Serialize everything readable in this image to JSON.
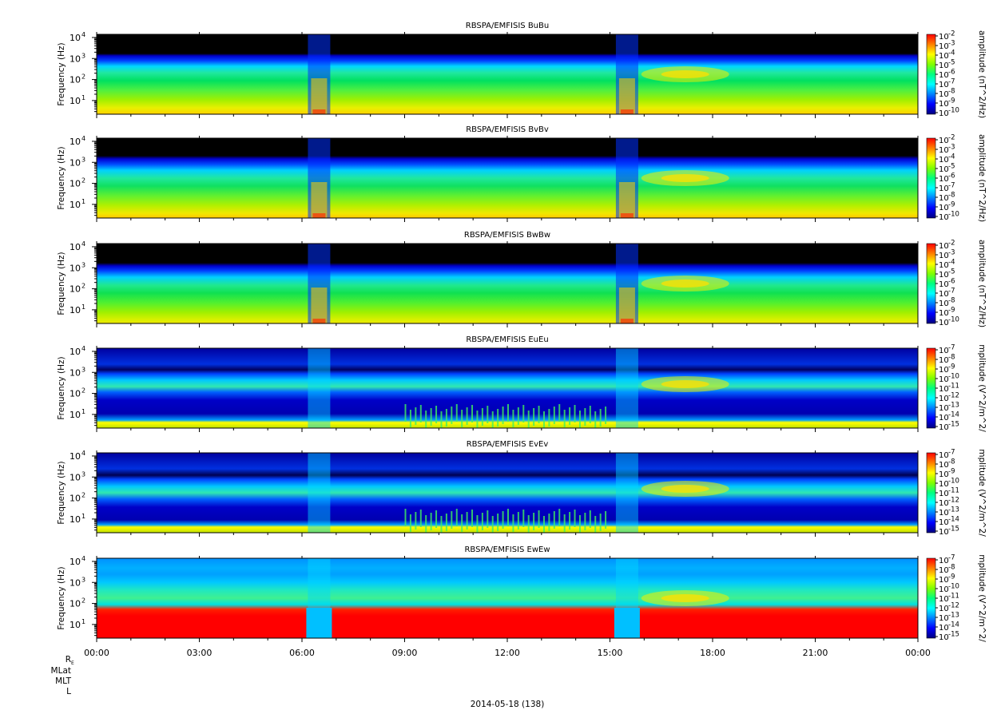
{
  "chart_data": [
    {
      "type": "heatmap",
      "title": "RBSPA/EMFISIS  BuBu",
      "ylabel": "Frequency (Hz)",
      "y_scale": "log",
      "y_ticks": [
        "10",
        "10",
        "10",
        "10"
      ],
      "y_tick_exponents": [
        "1",
        "2",
        "3",
        "4"
      ],
      "colorbar_label": "amplitude (nT^2/Hz)",
      "colorbar_ticks": [
        "10",
        "10",
        "10",
        "10",
        "10",
        "10",
        "10",
        "10",
        "10"
      ],
      "colorbar_exponents": [
        "-2",
        "-3",
        "-4",
        "-5",
        "-6",
        "-7",
        "-8",
        "-9",
        "-10"
      ]
    },
    {
      "type": "heatmap",
      "title": "RBSPA/EMFISIS  BvBv",
      "ylabel": "Frequency (Hz)",
      "y_scale": "log",
      "y_ticks": [
        "10",
        "10",
        "10",
        "10"
      ],
      "y_tick_exponents": [
        "1",
        "2",
        "3",
        "4"
      ],
      "colorbar_label": "amplitude (nT^2/Hz)",
      "colorbar_ticks": [
        "10",
        "10",
        "10",
        "10",
        "10",
        "10",
        "10",
        "10",
        "10"
      ],
      "colorbar_exponents": [
        "-2",
        "-3",
        "-4",
        "-5",
        "-6",
        "-7",
        "-8",
        "-9",
        "-10"
      ]
    },
    {
      "type": "heatmap",
      "title": "RBSPA/EMFISIS  BwBw",
      "ylabel": "Frequency (Hz)",
      "y_scale": "log",
      "y_ticks": [
        "10",
        "10",
        "10",
        "10"
      ],
      "y_tick_exponents": [
        "1",
        "2",
        "3",
        "4"
      ],
      "colorbar_label": "amplitude (nT^2/Hz)",
      "colorbar_ticks": [
        "10",
        "10",
        "10",
        "10",
        "10",
        "10",
        "10",
        "10",
        "10"
      ],
      "colorbar_exponents": [
        "-2",
        "-3",
        "-4",
        "-5",
        "-6",
        "-7",
        "-8",
        "-9",
        "-10"
      ]
    },
    {
      "type": "heatmap",
      "title": "RBSPA/EMFISIS  EuEu",
      "ylabel": "Frequency (Hz)",
      "y_scale": "log",
      "y_ticks": [
        "10",
        "10",
        "10",
        "10"
      ],
      "y_tick_exponents": [
        "1",
        "2",
        "3",
        "4"
      ],
      "colorbar_label": "mplitude (V^2/m^2/",
      "colorbar_ticks": [
        "10",
        "10",
        "10",
        "10",
        "10",
        "10",
        "10",
        "10",
        "10"
      ],
      "colorbar_exponents": [
        "-7",
        "-8",
        "-9",
        "-10",
        "-11",
        "-12",
        "-13",
        "-14",
        "-15"
      ]
    },
    {
      "type": "heatmap",
      "title": "RBSPA/EMFISIS  EvEv",
      "ylabel": "Frequency (Hz)",
      "y_scale": "log",
      "y_ticks": [
        "10",
        "10",
        "10",
        "10"
      ],
      "y_tick_exponents": [
        "1",
        "2",
        "3",
        "4"
      ],
      "colorbar_label": "mplitude (V^2/m^2/",
      "colorbar_ticks": [
        "10",
        "10",
        "10",
        "10",
        "10",
        "10",
        "10",
        "10",
        "10"
      ],
      "colorbar_exponents": [
        "-7",
        "-8",
        "-9",
        "-10",
        "-11",
        "-12",
        "-13",
        "-14",
        "-15"
      ]
    },
    {
      "type": "heatmap",
      "title": "RBSPA/EMFISIS  EwEw",
      "ylabel": "Frequency (Hz)",
      "y_scale": "log",
      "y_ticks": [
        "10",
        "10",
        "10",
        "10"
      ],
      "y_tick_exponents": [
        "1",
        "2",
        "3",
        "4"
      ],
      "colorbar_label": "mplitude (V^2/m^2/",
      "colorbar_ticks": [
        "10",
        "10",
        "10",
        "10",
        "10",
        "10",
        "10",
        "10",
        "10"
      ],
      "colorbar_exponents": [
        "-7",
        "-8",
        "-9",
        "-10",
        "-11",
        "-12",
        "-13",
        "-14",
        "-15"
      ]
    }
  ],
  "x_axis": {
    "ticks": [
      "00:00",
      "03:00",
      "06:00",
      "09:00",
      "12:00",
      "15:00",
      "18:00",
      "21:00",
      "00:00"
    ],
    "ephemeris_labels": [
      "R",
      "MLat",
      "MLT",
      "L"
    ],
    "r_subscript": "E",
    "date_label": "2014-05-18 (138)"
  },
  "colors": {
    "background": "#ffffff",
    "no_data": "#000000",
    "colormap": [
      "#00007f",
      "#0000ff",
      "#0080ff",
      "#00ffff",
      "#00ff80",
      "#80ff00",
      "#ffff00",
      "#ff8000",
      "#ff0000"
    ]
  }
}
